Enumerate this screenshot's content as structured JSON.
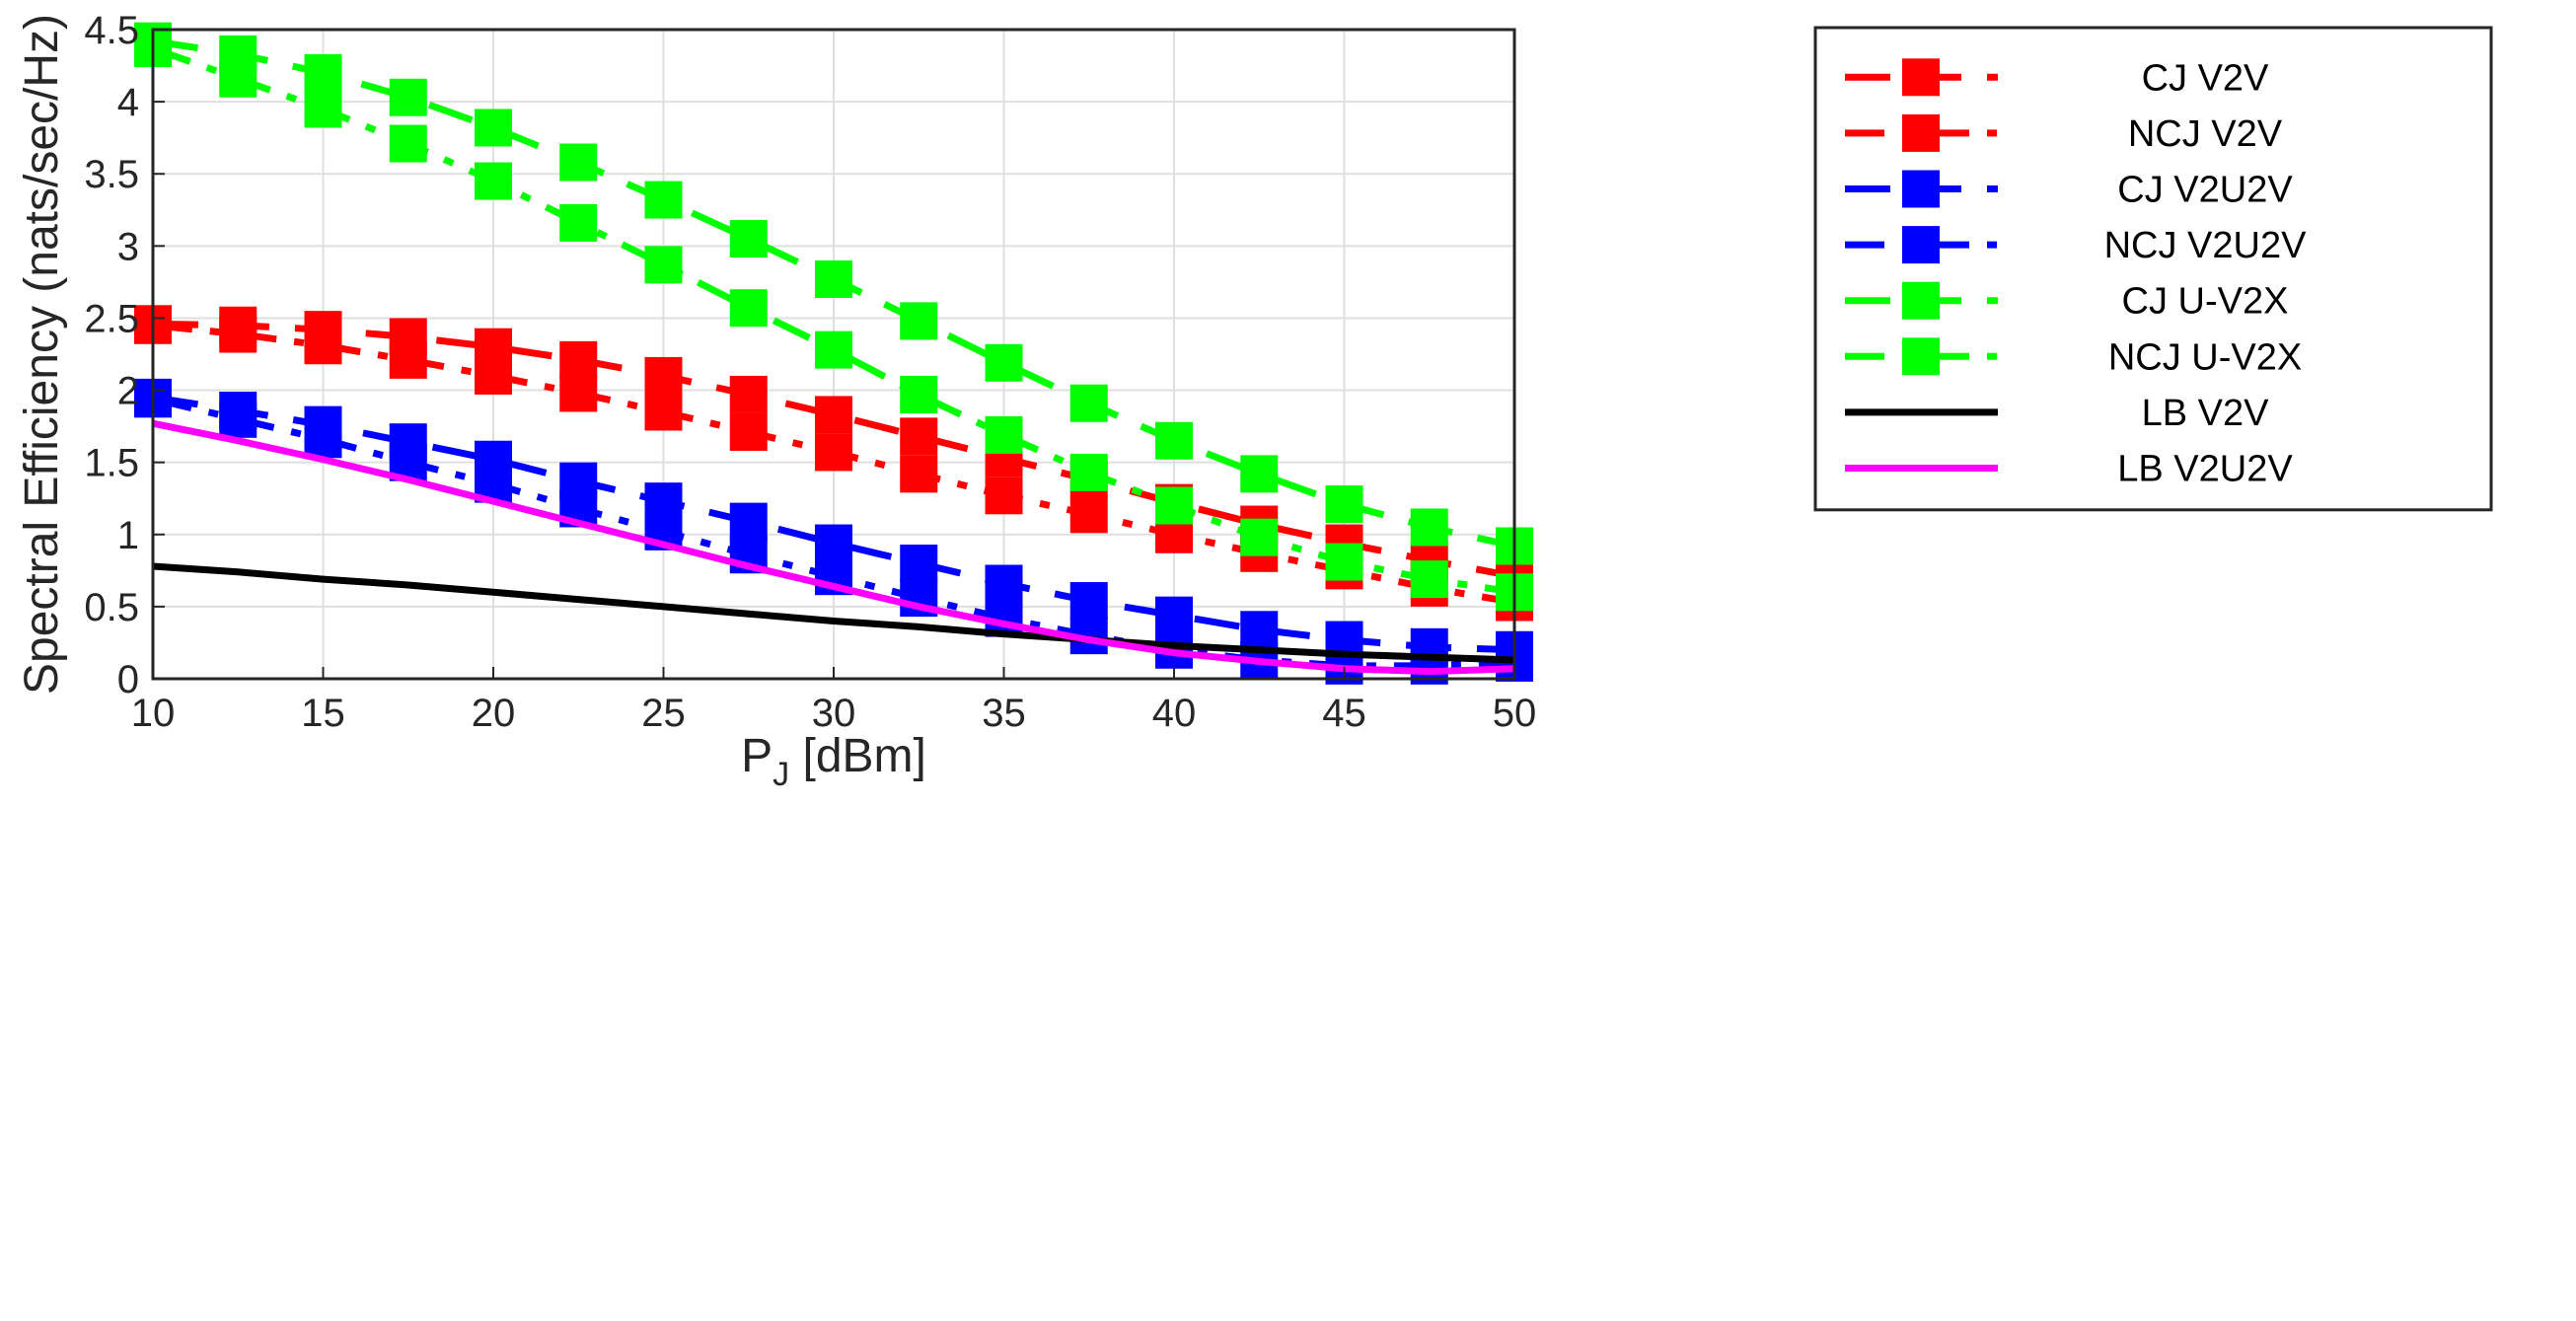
{
  "chart_data": {
    "type": "line",
    "title": "",
    "xlabel": "P",
    "xlabel_sub": "J",
    "xlabel_unit": " [dBm]",
    "ylabel": "Spectral Efficiency (nats/sec/Hz)",
    "xlim": [
      10,
      50
    ],
    "ylim": [
      0,
      4.5
    ],
    "xticks": [
      10,
      15,
      20,
      25,
      30,
      35,
      40,
      45,
      50
    ],
    "yticks": [
      0,
      0.5,
      1,
      1.5,
      2,
      2.5,
      3,
      3.5,
      4,
      4.5
    ],
    "xtick_labels": [
      "10",
      "15",
      "20",
      "25",
      "30",
      "35",
      "40",
      "45",
      "50"
    ],
    "ytick_labels": [
      "0",
      "0.5",
      "1",
      "1.5",
      "2",
      "2.5",
      "3",
      "3.5",
      "4",
      "4.5"
    ],
    "grid": true,
    "legend_position": "top-right",
    "x": [
      10,
      12.5,
      15,
      17.5,
      20,
      22.5,
      25,
      27.5,
      30,
      32.5,
      35,
      37.5,
      40,
      42.5,
      45,
      47.5,
      50
    ],
    "series": [
      {
        "name": "CJ V2V",
        "color": "#ff0000",
        "dash": "dashed",
        "marker": "square",
        "values": [
          2.46,
          2.45,
          2.42,
          2.37,
          2.3,
          2.21,
          2.1,
          1.97,
          1.83,
          1.68,
          1.53,
          1.38,
          1.22,
          1.07,
          0.94,
          0.82,
          0.71
        ]
      },
      {
        "name": "NCJ V2V",
        "color": "#ff0000",
        "dash": "dashdot",
        "marker": "square",
        "values": [
          2.45,
          2.39,
          2.31,
          2.21,
          2.1,
          1.98,
          1.85,
          1.71,
          1.57,
          1.42,
          1.27,
          1.14,
          1.0,
          0.87,
          0.75,
          0.63,
          0.53
        ]
      },
      {
        "name": "CJ V2U2V",
        "color": "#0000ff",
        "dash": "dashed",
        "marker": "square",
        "values": [
          1.95,
          1.86,
          1.76,
          1.64,
          1.52,
          1.37,
          1.23,
          1.09,
          0.94,
          0.8,
          0.66,
          0.54,
          0.44,
          0.34,
          0.27,
          0.22,
          0.2
        ]
      },
      {
        "name": "NCJ V2U2V",
        "color": "#0000ff",
        "dash": "dashdot",
        "marker": "square",
        "values": [
          1.94,
          1.8,
          1.66,
          1.5,
          1.35,
          1.18,
          1.02,
          0.86,
          0.71,
          0.56,
          0.42,
          0.3,
          0.2,
          0.13,
          0.09,
          0.09,
          0.11
        ]
      },
      {
        "name": "CJ U-V2X",
        "color": "#00ff00",
        "dash": "dashed",
        "marker": "square",
        "values": [
          4.42,
          4.33,
          4.2,
          4.03,
          3.82,
          3.58,
          3.32,
          3.05,
          2.77,
          2.48,
          2.19,
          1.91,
          1.65,
          1.42,
          1.21,
          1.05,
          0.92
        ]
      },
      {
        "name": "NCJ U-V2X",
        "color": "#00ff00",
        "dash": "dashdot",
        "marker": "square",
        "values": [
          4.37,
          4.16,
          3.95,
          3.71,
          3.45,
          3.16,
          2.87,
          2.57,
          2.28,
          1.97,
          1.69,
          1.43,
          1.2,
          0.98,
          0.81,
          0.69,
          0.6
        ]
      },
      {
        "name": "LB V2V",
        "color": "#000000",
        "dash": "solid",
        "marker": "none",
        "values": [
          0.78,
          0.74,
          0.69,
          0.65,
          0.6,
          0.55,
          0.5,
          0.45,
          0.4,
          0.36,
          0.31,
          0.27,
          0.23,
          0.2,
          0.17,
          0.15,
          0.13
        ]
      },
      {
        "name": "LB V2U2V",
        "color": "#ff00ff",
        "dash": "solid",
        "marker": "none",
        "values": [
          1.77,
          1.65,
          1.52,
          1.38,
          1.23,
          1.08,
          0.93,
          0.78,
          0.64,
          0.5,
          0.38,
          0.27,
          0.18,
          0.12,
          0.07,
          0.05,
          0.07
        ]
      }
    ]
  }
}
